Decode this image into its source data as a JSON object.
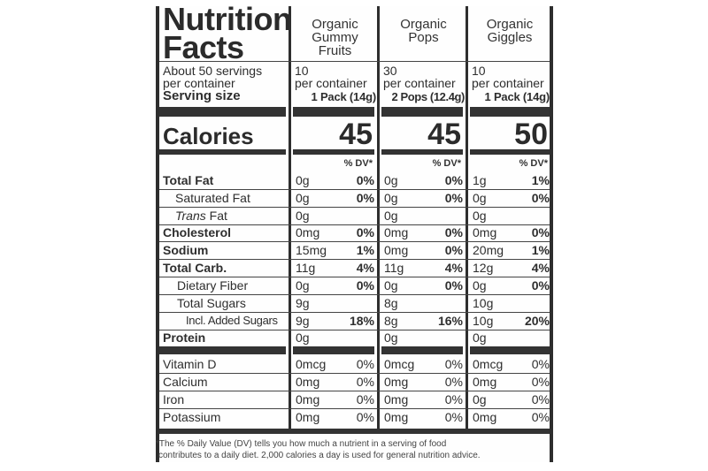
{
  "title": [
    "Nutrition",
    "Facts"
  ],
  "servings_text": [
    "About 50 servings",
    "per container"
  ],
  "serving_size_label": "Serving size",
  "calories_label": "Calories",
  "dv_header": "% DV*",
  "products": [
    {
      "name": [
        "Organic",
        "Gummy",
        "Fruits"
      ],
      "servings": [
        "10",
        "per container"
      ],
      "serving_size": "1 Pack (14g)",
      "calories": "45"
    },
    {
      "name": [
        "Organic",
        "Pops"
      ],
      "servings": [
        "30",
        "per container"
      ],
      "serving_size": "2 Pops (12.4g)",
      "calories": "45"
    },
    {
      "name": [
        "Organic",
        "Giggles"
      ],
      "servings": [
        "10",
        "per container"
      ],
      "serving_size": "1 Pack (14g)",
      "calories": "50"
    }
  ],
  "nutrients": [
    {
      "label": "Total Fat",
      "values": [
        [
          "0g",
          "0%"
        ],
        [
          "0g",
          "0%"
        ],
        [
          "1g",
          "1%"
        ]
      ]
    },
    {
      "label": "Saturated Fat",
      "values": [
        [
          "0g",
          "0%"
        ],
        [
          "0g",
          "0%"
        ],
        [
          "0g",
          "0%"
        ]
      ]
    },
    {
      "label_italic": "Trans",
      "label": " Fat",
      "values": [
        [
          "0g",
          ""
        ],
        [
          "0g",
          ""
        ],
        [
          "0g",
          ""
        ]
      ]
    },
    {
      "label": "Cholesterol",
      "values": [
        [
          "0mg",
          "0%"
        ],
        [
          "0mg",
          "0%"
        ],
        [
          "0mg",
          "0%"
        ]
      ]
    },
    {
      "label": "Sodium",
      "values": [
        [
          "15mg",
          "1%"
        ],
        [
          "0mg",
          "0%"
        ],
        [
          "20mg",
          "1%"
        ]
      ]
    },
    {
      "label": "Total Carb.",
      "values": [
        [
          "11g",
          "4%"
        ],
        [
          "11g",
          "4%"
        ],
        [
          "12g",
          "4%"
        ]
      ]
    },
    {
      "label": "Dietary Fiber",
      "values": [
        [
          "0g",
          "0%"
        ],
        [
          "0g",
          "0%"
        ],
        [
          "0g",
          "0%"
        ]
      ]
    },
    {
      "label": "Total Sugars",
      "values": [
        [
          "9g",
          ""
        ],
        [
          "8g",
          ""
        ],
        [
          "10g",
          ""
        ]
      ]
    },
    {
      "label": "Incl. Added Sugars",
      "values": [
        [
          "9g",
          "18%"
        ],
        [
          "8g",
          "16%"
        ],
        [
          "10g",
          "20%"
        ]
      ]
    },
    {
      "label": "Protein",
      "values": [
        [
          "0g",
          ""
        ],
        [
          "0g",
          ""
        ],
        [
          "0g",
          ""
        ]
      ]
    },
    {
      "label": "Vitamin D",
      "values": [
        [
          "0mcg",
          "0%"
        ],
        [
          "0mcg",
          "0%"
        ],
        [
          "0mcg",
          "0%"
        ]
      ]
    },
    {
      "label": "Calcium",
      "values": [
        [
          "0mg",
          "0%"
        ],
        [
          "0mg",
          "0%"
        ],
        [
          "0mg",
          "0%"
        ]
      ]
    },
    {
      "label": "Iron",
      "values": [
        [
          "0mg",
          "0%"
        ],
        [
          "0mg",
          "0%"
        ],
        [
          "0g",
          "0%"
        ]
      ]
    },
    {
      "label": "Potassium",
      "values": [
        [
          "0mg",
          "0%"
        ],
        [
          "0mg",
          "0%"
        ],
        [
          "0mg",
          "0%"
        ]
      ]
    }
  ],
  "footnote": [
    "*The % Daily Value (DV) tells you how much a nutrient in a serving of food",
    "contributes to a daily diet. 2,000 calories a day is used for general nutrition advice."
  ]
}
